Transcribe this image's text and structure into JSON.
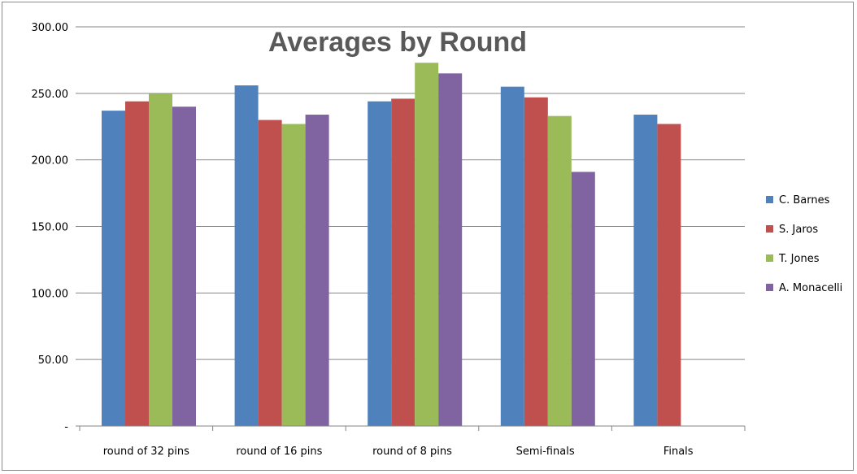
{
  "chart_data": {
    "type": "bar",
    "title": "Averages by Round",
    "xlabel": "",
    "ylabel": "",
    "categories": [
      "round of 32 pins",
      "round of 16 pins",
      "round of 8 pins",
      "Semi-finals",
      "Finals"
    ],
    "series": [
      {
        "name": "C. Barnes",
        "color": "#4F81BD",
        "values": [
          237,
          256,
          244,
          255,
          234
        ]
      },
      {
        "name": "S. Jaros",
        "color": "#C0504D",
        "values": [
          244,
          230,
          246,
          247,
          227
        ]
      },
      {
        "name": "T. Jones",
        "color": "#9BBB59",
        "values": [
          250,
          227,
          273,
          233,
          null
        ]
      },
      {
        "name": "A. Monacelli",
        "color": "#8064A2",
        "values": [
          240,
          234,
          265,
          191,
          null
        ]
      }
    ],
    "ylim": [
      0,
      300
    ],
    "yticks": [
      0,
      50,
      100,
      150,
      200,
      250,
      300
    ],
    "ytick_labels": [
      "-",
      "50.00",
      "100.00",
      "150.00",
      "200.00",
      "250.00",
      "300.00"
    ],
    "grid": true,
    "legend_position": "right"
  }
}
